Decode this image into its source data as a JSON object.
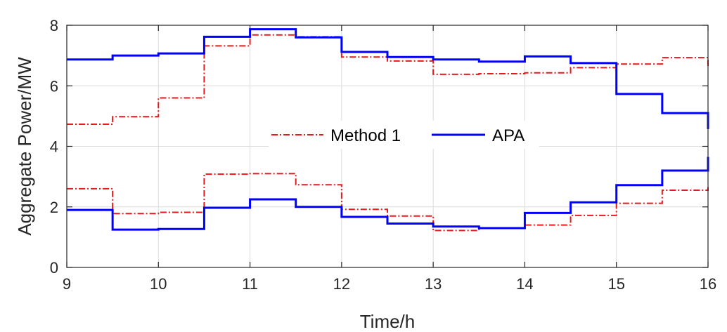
{
  "chart_data": {
    "type": "line",
    "step": "post",
    "title": "",
    "xlabel": "Time/h",
    "ylabel": "Aggregate Power/MW",
    "xlim": [
      9,
      16
    ],
    "ylim": [
      0,
      8
    ],
    "xticks": [
      9,
      10,
      11,
      12,
      13,
      14,
      15,
      16
    ],
    "yticks": [
      0,
      2,
      4,
      6,
      8
    ],
    "grid": true,
    "legend_position": "center",
    "x": [
      9,
      9.5,
      10,
      10.5,
      11,
      11.5,
      12,
      12.5,
      13,
      13.5,
      14,
      14.5,
      15,
      15.5,
      16
    ],
    "series": [
      {
        "name": "Method 1",
        "group": "upper",
        "color": "#e41a1c",
        "dash": "dashdot",
        "values": [
          4.73,
          4.98,
          5.6,
          7.32,
          7.68,
          7.62,
          6.95,
          6.82,
          6.38,
          6.4,
          6.43,
          6.6,
          6.72,
          6.93,
          6.6
        ]
      },
      {
        "name": "Method 1",
        "group": "lower",
        "color": "#e41a1c",
        "dash": "dashdot",
        "values": [
          2.6,
          1.78,
          1.82,
          3.08,
          3.1,
          2.73,
          1.92,
          1.7,
          1.22,
          1.3,
          1.4,
          1.72,
          2.12,
          2.55,
          2.65
        ]
      },
      {
        "name": "APA",
        "group": "upper",
        "color": "#0000ff",
        "dash": "solid",
        "values": [
          6.87,
          7.0,
          7.07,
          7.62,
          7.87,
          7.6,
          7.12,
          6.95,
          6.87,
          6.8,
          6.97,
          6.75,
          5.73,
          5.1,
          4.57
        ]
      },
      {
        "name": "APA",
        "group": "lower",
        "color": "#0000ff",
        "dash": "solid",
        "values": [
          1.9,
          1.25,
          1.27,
          1.97,
          2.25,
          2.0,
          1.67,
          1.45,
          1.35,
          1.3,
          1.8,
          2.15,
          2.72,
          3.2,
          3.65
        ]
      }
    ],
    "legend": [
      {
        "name": "Method 1",
        "color": "#e41a1c",
        "dash": "dashdot"
      },
      {
        "name": "APA",
        "color": "#0000ff",
        "dash": "solid"
      }
    ]
  }
}
